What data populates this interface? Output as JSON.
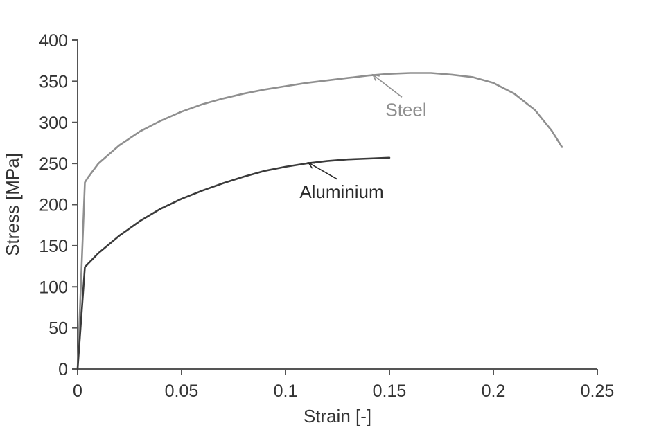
{
  "chart_data": {
    "type": "line",
    "title": "",
    "xlabel": "Strain [-]",
    "ylabel": "Stress [MPa]",
    "xlim": [
      0,
      0.25
    ],
    "ylim": [
      0,
      400
    ],
    "x_ticks": [
      "0",
      "0.05",
      "0.1",
      "0.15",
      "0.2",
      "0.25"
    ],
    "y_ticks": [
      "0",
      "50",
      "100",
      "150",
      "200",
      "250",
      "300",
      "350",
      "400"
    ],
    "grid": false,
    "legend": "none",
    "series": [
      {
        "name": "Steel",
        "color": "#8f8f8f",
        "points": [
          [
            0,
            0
          ],
          [
            0.0035,
            227
          ],
          [
            0.005,
            233
          ],
          [
            0.01,
            250
          ],
          [
            0.02,
            272
          ],
          [
            0.03,
            289
          ],
          [
            0.04,
            302
          ],
          [
            0.05,
            313
          ],
          [
            0.06,
            322
          ],
          [
            0.07,
            329
          ],
          [
            0.08,
            335
          ],
          [
            0.09,
            340
          ],
          [
            0.1,
            344
          ],
          [
            0.11,
            348
          ],
          [
            0.12,
            351
          ],
          [
            0.13,
            354
          ],
          [
            0.14,
            357
          ],
          [
            0.15,
            359
          ],
          [
            0.16,
            360
          ],
          [
            0.17,
            360
          ],
          [
            0.18,
            358
          ],
          [
            0.19,
            355
          ],
          [
            0.2,
            348
          ],
          [
            0.21,
            335
          ],
          [
            0.22,
            315
          ],
          [
            0.228,
            290
          ],
          [
            0.233,
            270
          ]
        ]
      },
      {
        "name": "Aluminium",
        "color": "#3a3a3a",
        "points": [
          [
            0,
            0
          ],
          [
            0.0035,
            124
          ],
          [
            0.005,
            128
          ],
          [
            0.01,
            141
          ],
          [
            0.02,
            162
          ],
          [
            0.03,
            180
          ],
          [
            0.04,
            195
          ],
          [
            0.05,
            207
          ],
          [
            0.06,
            217
          ],
          [
            0.07,
            226
          ],
          [
            0.08,
            234
          ],
          [
            0.09,
            241
          ],
          [
            0.1,
            246
          ],
          [
            0.11,
            250
          ],
          [
            0.12,
            253
          ],
          [
            0.13,
            255
          ],
          [
            0.14,
            256
          ],
          [
            0.15,
            257
          ]
        ]
      }
    ],
    "annotations": [
      {
        "text": "Steel",
        "color": "#8f8f8f",
        "target": [
          0.142,
          358
        ],
        "label_at": [
          0.158,
          308
        ]
      },
      {
        "text": "Aluminium",
        "color": "#2a2a2a",
        "target": [
          0.111,
          251
        ],
        "label_at": [
          0.127,
          208
        ]
      }
    ]
  }
}
